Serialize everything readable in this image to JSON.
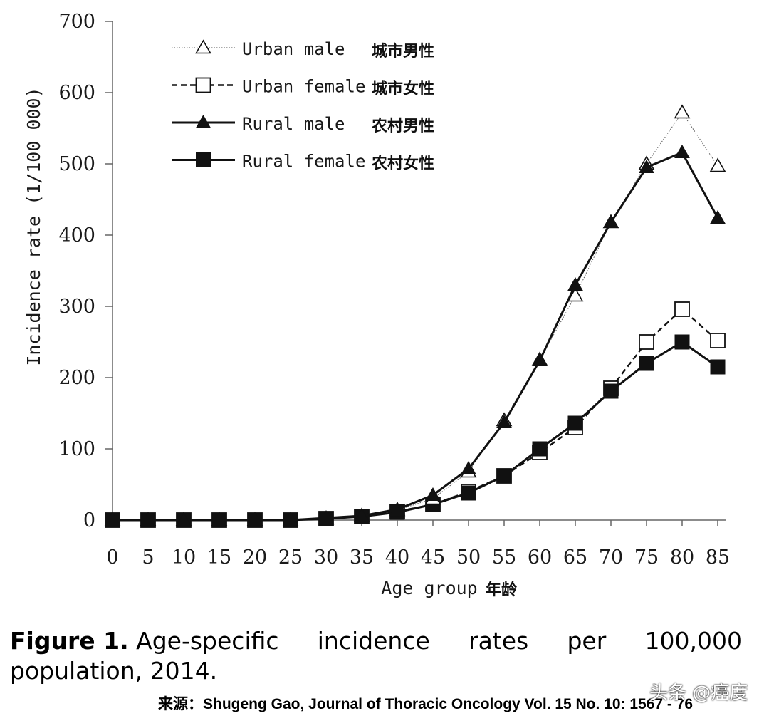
{
  "chart_data": {
    "type": "line",
    "title": "",
    "xlabel": "Age group",
    "xlabel_cn": "年龄",
    "ylabel": "Incidence rate (1/100 000)",
    "ylim": [
      0,
      700
    ],
    "yticks": [
      0,
      100,
      200,
      300,
      400,
      500,
      600,
      700
    ],
    "categories": [
      "0",
      "5",
      "10",
      "15",
      "20",
      "25",
      "30",
      "35",
      "40",
      "45",
      "50",
      "55",
      "60",
      "65",
      "70",
      "75",
      "80",
      "85"
    ],
    "x": [
      0,
      5,
      10,
      15,
      20,
      25,
      30,
      35,
      40,
      45,
      50,
      55,
      60,
      65,
      70,
      75,
      80,
      85
    ],
    "legend_position": "top-left",
    "series": [
      {
        "name": "Urban male",
        "name_cn": "城市男性",
        "marker": "triangle-open",
        "line": "dotted",
        "values": [
          0,
          0,
          0,
          0,
          0,
          0,
          2,
          6,
          14,
          30,
          68,
          140,
          225,
          315,
          418,
          500,
          572,
          497
        ]
      },
      {
        "name": "Urban female",
        "name_cn": "城市女性",
        "marker": "square-open",
        "line": "dashed",
        "values": [
          0,
          0,
          0,
          0,
          0,
          0,
          2,
          5,
          12,
          22,
          40,
          62,
          95,
          130,
          185,
          250,
          296,
          252
        ]
      },
      {
        "name": "Rural male",
        "name_cn": "农村男性",
        "marker": "triangle-filled",
        "line": "solid",
        "values": [
          0,
          0,
          0,
          0,
          0,
          0,
          3,
          6,
          15,
          35,
          72,
          137,
          224,
          330,
          418,
          495,
          516,
          424
        ]
      },
      {
        "name": "Rural female",
        "name_cn": "农村女性",
        "marker": "square-filled",
        "line": "solid",
        "values": [
          0,
          0,
          0,
          0,
          0,
          0,
          2,
          5,
          11,
          22,
          38,
          62,
          100,
          136,
          181,
          220,
          250,
          215
        ]
      }
    ]
  },
  "caption": {
    "label": "Figure 1.",
    "line1_words": [
      "Age-specific",
      "incidence",
      "rates",
      "per",
      "100,000"
    ],
    "line2": "population, 2014."
  },
  "source": "来源：Shugeng Gao, Journal of Thoracic Oncology Vol. 15 No. 10: 1567 - 76",
  "watermark": "头条 @癌度"
}
